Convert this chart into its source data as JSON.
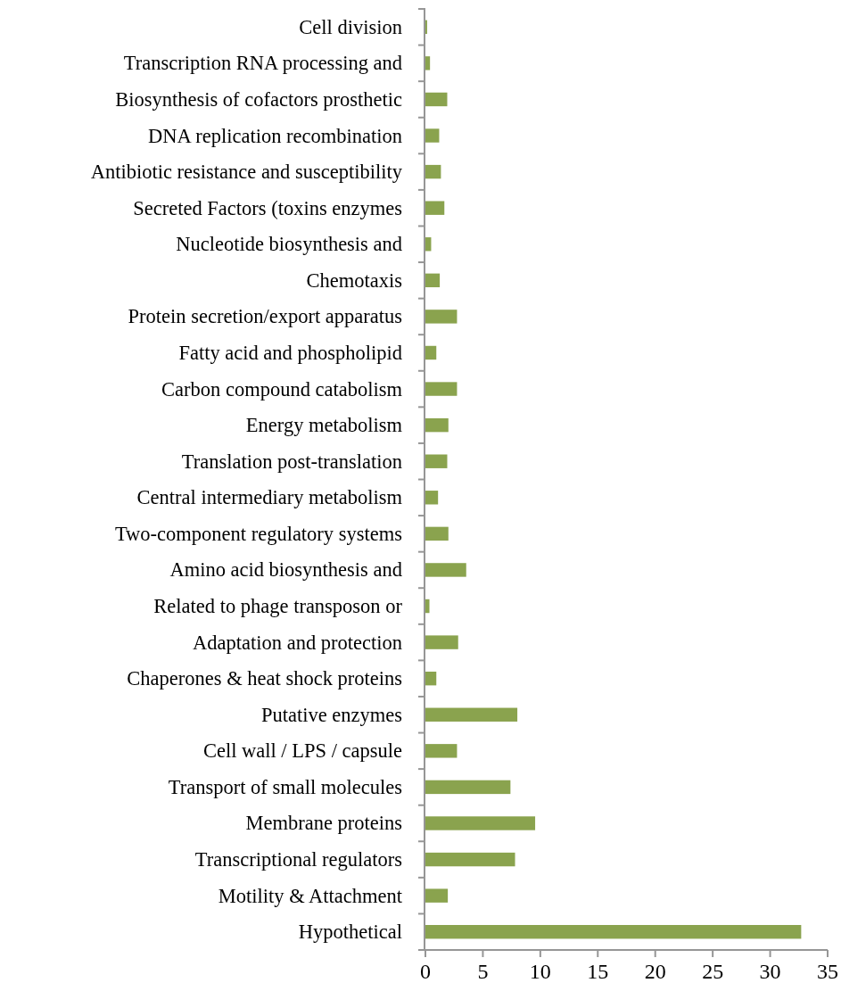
{
  "chart_data": {
    "type": "bar",
    "orientation": "horizontal",
    "categories": [
      "Cell division",
      "Transcription RNA processing and",
      "Biosynthesis of cofactors prosthetic",
      "DNA replication recombination",
      "Antibiotic resistance and susceptibility",
      "Secreted Factors (toxins enzymes",
      "Nucleotide biosynthesis and",
      "Chemotaxis",
      "Protein secretion/export apparatus",
      "Fatty acid and phospholipid",
      "Carbon compound catabolism",
      "Energy metabolism",
      "Translation post-translation",
      "Central intermediary metabolism",
      "Two-component regulatory systems",
      "Amino acid biosynthesis and",
      "Related to phage transposon or",
      "Adaptation and protection",
      "Chaperones & heat shock proteins",
      "Putative enzymes",
      "Cell wall / LPS / capsule",
      "Transport of small molecules",
      "Membrane proteins",
      "Transcriptional regulators",
      "Motility & Attachment",
      "Hypothetical"
    ],
    "values": [
      0.15,
      0.4,
      1.9,
      1.2,
      1.35,
      1.65,
      0.5,
      1.25,
      2.75,
      0.95,
      2.75,
      2.0,
      1.9,
      1.1,
      2.0,
      3.55,
      0.35,
      2.85,
      0.95,
      8.0,
      2.75,
      7.4,
      9.55,
      7.8,
      1.95,
      32.7
    ],
    "color": "#8aa34e",
    "xlim": [
      0,
      35
    ],
    "xticks": [
      0,
      5,
      10,
      15,
      20,
      25,
      30,
      35
    ]
  }
}
